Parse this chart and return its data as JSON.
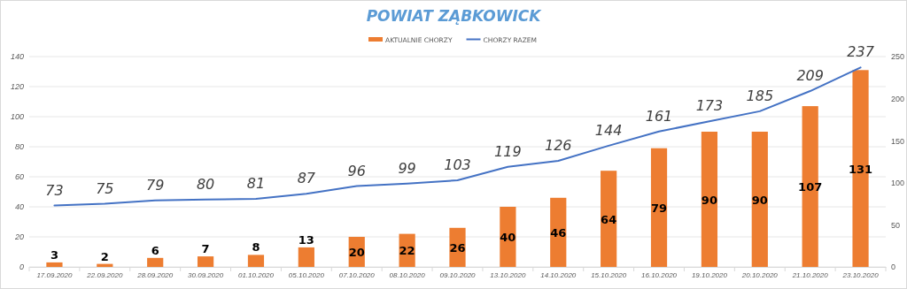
{
  "chart_data": {
    "type": "bar",
    "title": "POWIAT ZĄBKOWICK",
    "categories": [
      "17.09.2020",
      "22.09.2020",
      "28.09.2020",
      "30.09.2020",
      "01.10.2020",
      "05.10.2020",
      "07.10.2020",
      "08.10.2020",
      "09.10.2020",
      "13.10.2020",
      "14.10.2020",
      "15.10.2020",
      "16.10.2020",
      "19.10.2020",
      "20.10.2020",
      "21.10.2020",
      "23.10.2020"
    ],
    "series": [
      {
        "name": "AKTUALNIE CHORZY",
        "color": "#ed7d31",
        "values": [
          3,
          2,
          6,
          7,
          8,
          13,
          20,
          22,
          26,
          40,
          46,
          64,
          79,
          90,
          90,
          107,
          131
        ]
      },
      {
        "name": "CHORZY RAZEM",
        "type": "line",
        "axis": "y2",
        "color": "#4472c4",
        "values": [
          73,
          75,
          79,
          80,
          81,
          87,
          96,
          99,
          103,
          119,
          126,
          144,
          161,
          173,
          185,
          209,
          237
        ]
      }
    ],
    "ylim": [
      0,
      140
    ],
    "yticks": [
      0,
      20,
      40,
      60,
      80,
      100,
      120,
      140
    ],
    "y2lim": [
      0,
      250
    ],
    "y2ticks": [
      0,
      50,
      100,
      150,
      200,
      250
    ],
    "grid": "y",
    "legend": "top",
    "marker": "none",
    "line_style": "solid",
    "data_labels": true
  }
}
